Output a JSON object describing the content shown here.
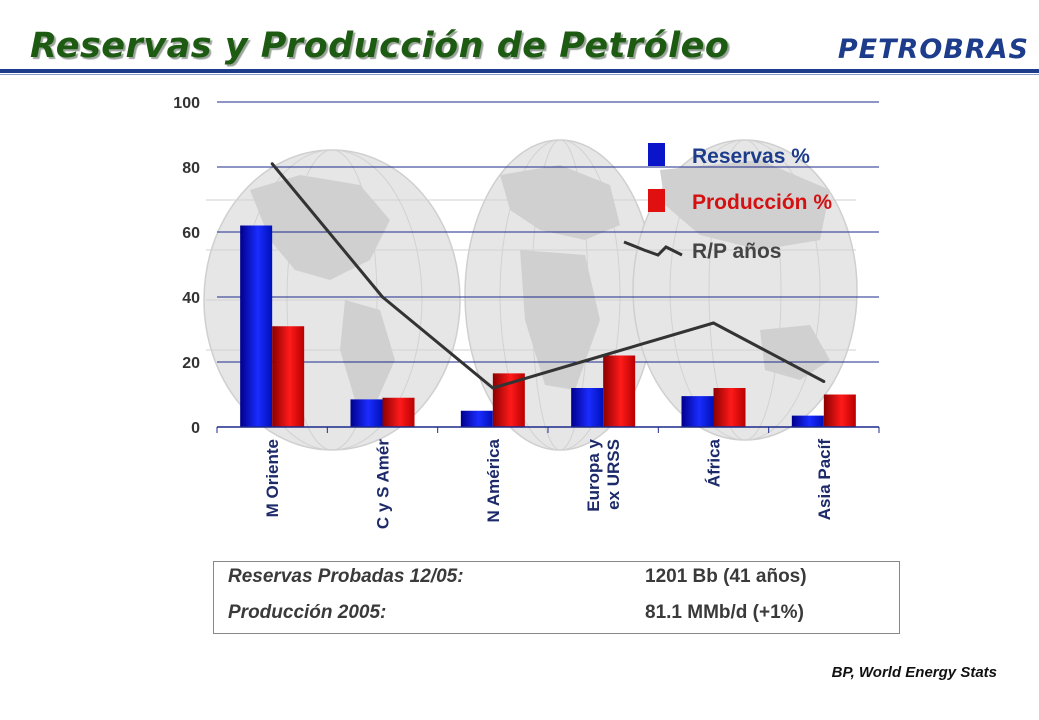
{
  "header": {
    "title": "Reservas y Producción de Petróleo",
    "brand": "PETROBRAS",
    "title_color": "#1d5a12",
    "brand_color": "#1d3d8c"
  },
  "chart_data": {
    "type": "bar",
    "categories": [
      "M Oriente",
      "C y S Amér",
      "N América",
      "Europa y\nex URSS",
      "África",
      "Asia Pacíf"
    ],
    "series": [
      {
        "name": "Reservas %",
        "type": "bar",
        "color": "#0a14c8",
        "values": [
          62,
          8.5,
          5,
          12,
          9.5,
          3.5
        ]
      },
      {
        "name": "Producción %",
        "type": "bar",
        "color": "#d41010",
        "values": [
          31,
          9,
          16.5,
          22,
          12,
          10
        ]
      },
      {
        "name": "R/P años",
        "type": "line",
        "color": "#333333",
        "values": [
          81,
          40,
          12,
          22,
          32,
          14
        ]
      }
    ],
    "ylim": [
      0,
      100
    ],
    "yticks": [
      0,
      20,
      40,
      60,
      80,
      100
    ],
    "grid": true,
    "legend": "top-right",
    "legend_text_colors": [
      "#1d3d8c",
      "#d41010",
      "#444444"
    ]
  },
  "summary": {
    "rows": [
      {
        "label": "Reservas Probadas 12/05:",
        "value": "1201 Bb (41 años)"
      },
      {
        "label": "Producción 2005:",
        "value": "81.1 MMb/d (+1%)"
      }
    ]
  },
  "source": "BP, World Energy Stats"
}
